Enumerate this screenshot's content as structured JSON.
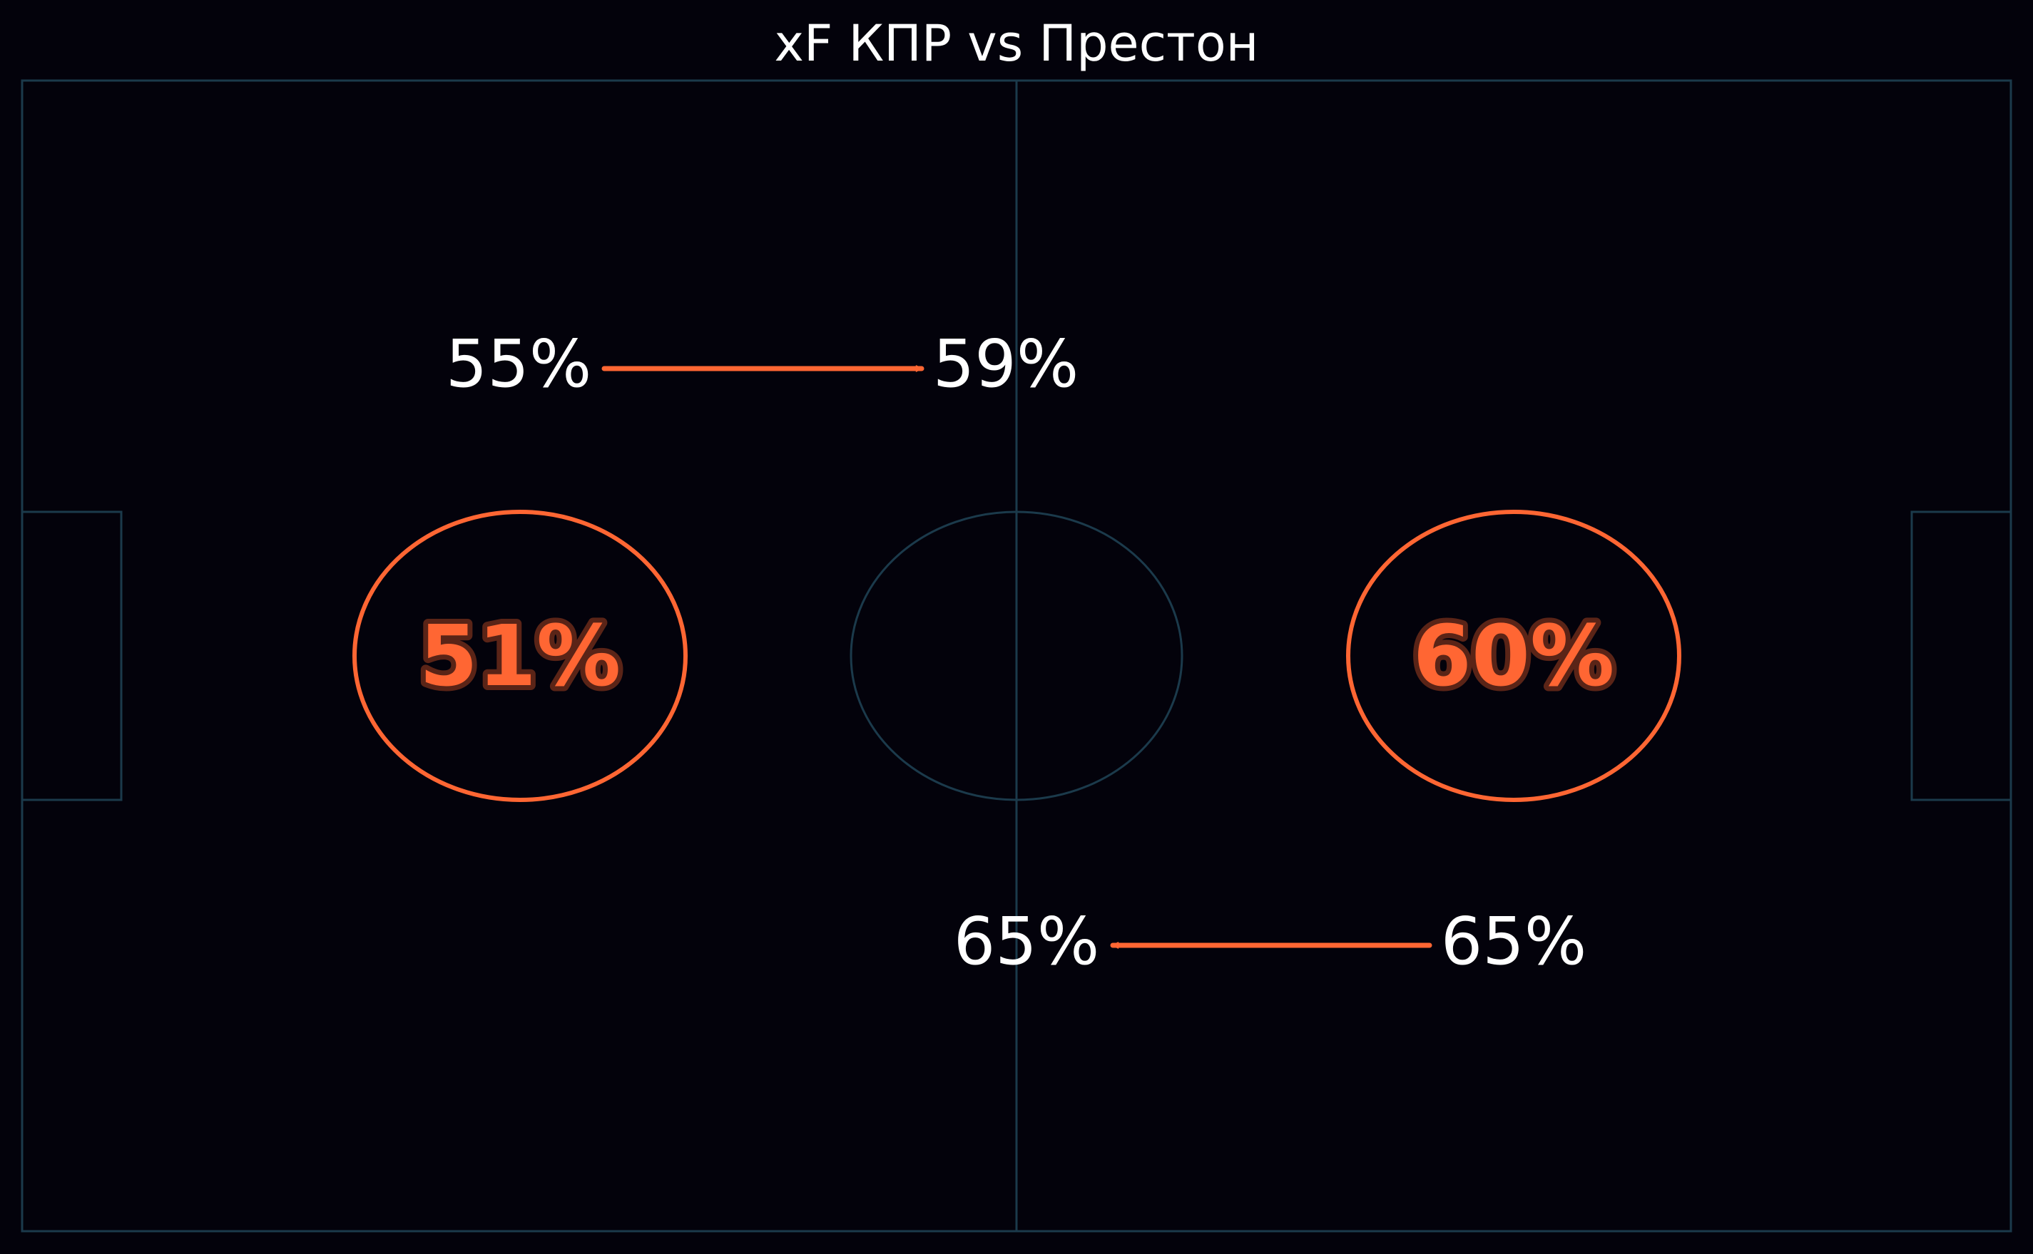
{
  "chart_data": {
    "type": "pitch-annotation",
    "title": "xF КПР vs Престон",
    "colors": {
      "background": "#03020b",
      "pitch_lines": "#1b3a4b",
      "accent": "#ff6633",
      "text": "#ffffff"
    },
    "zones": [
      {
        "side": "left",
        "value": "51%"
      },
      {
        "side": "right",
        "value": "60%"
      }
    ],
    "transitions": [
      {
        "direction": "right",
        "from": "55%",
        "to": "59%"
      },
      {
        "direction": "left",
        "from": "65%",
        "to": "65%"
      }
    ]
  }
}
